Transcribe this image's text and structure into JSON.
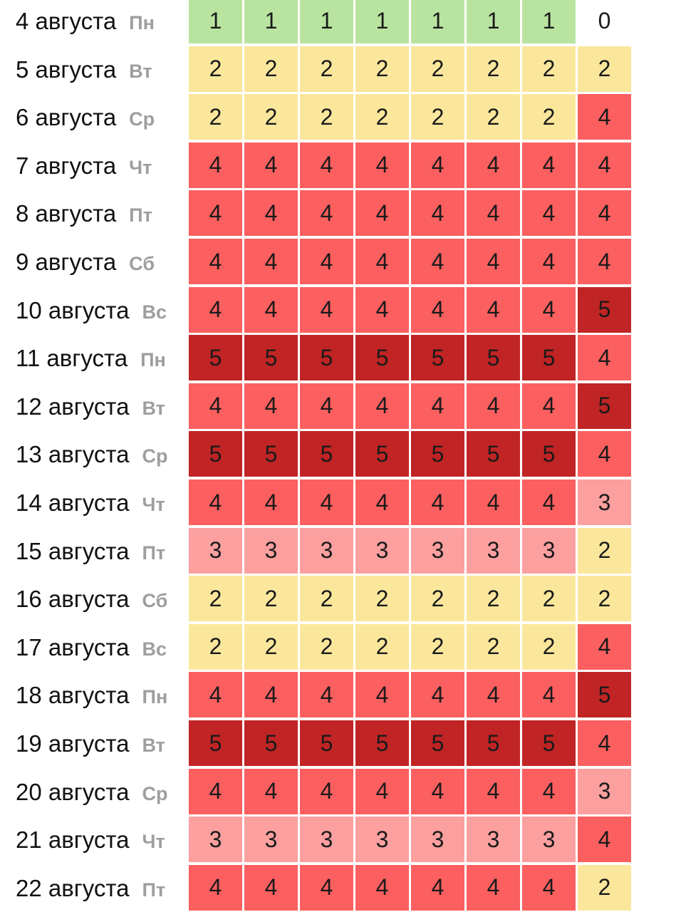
{
  "colors": {
    "0": "#ffffff",
    "1": "#b8e4a0",
    "2": "#fbe79c",
    "3": "#fb9f9f",
    "4": "#fb5f5f",
    "5": "#c02424"
  },
  "chart_data": {
    "type": "heatmap",
    "columns": 8,
    "rows": [
      {
        "date": "4 августа",
        "day": "Пн",
        "values": [
          1,
          1,
          1,
          1,
          1,
          1,
          1,
          0
        ]
      },
      {
        "date": "5 августа",
        "day": "Вт",
        "values": [
          2,
          2,
          2,
          2,
          2,
          2,
          2,
          2
        ]
      },
      {
        "date": "6 августа",
        "day": "Ср",
        "values": [
          2,
          2,
          2,
          2,
          2,
          2,
          2,
          4
        ]
      },
      {
        "date": "7 августа",
        "day": "Чт",
        "values": [
          4,
          4,
          4,
          4,
          4,
          4,
          4,
          4
        ]
      },
      {
        "date": "8 августа",
        "day": "Пт",
        "values": [
          4,
          4,
          4,
          4,
          4,
          4,
          4,
          4
        ]
      },
      {
        "date": "9 августа",
        "day": "Сб",
        "values": [
          4,
          4,
          4,
          4,
          4,
          4,
          4,
          4
        ]
      },
      {
        "date": "10 августа",
        "day": "Вс",
        "values": [
          4,
          4,
          4,
          4,
          4,
          4,
          4,
          5
        ]
      },
      {
        "date": "11 августа",
        "day": "Пн",
        "values": [
          5,
          5,
          5,
          5,
          5,
          5,
          5,
          4
        ]
      },
      {
        "date": "12 августа",
        "day": "Вт",
        "values": [
          4,
          4,
          4,
          4,
          4,
          4,
          4,
          5
        ]
      },
      {
        "date": "13 августа",
        "day": "Ср",
        "values": [
          5,
          5,
          5,
          5,
          5,
          5,
          5,
          4
        ]
      },
      {
        "date": "14 августа",
        "day": "Чт",
        "values": [
          4,
          4,
          4,
          4,
          4,
          4,
          4,
          3
        ]
      },
      {
        "date": "15 августа",
        "day": "Пт",
        "values": [
          3,
          3,
          3,
          3,
          3,
          3,
          3,
          2
        ]
      },
      {
        "date": "16 августа",
        "day": "Сб",
        "values": [
          2,
          2,
          2,
          2,
          2,
          2,
          2,
          2
        ]
      },
      {
        "date": "17 августа",
        "day": "Вс",
        "values": [
          2,
          2,
          2,
          2,
          2,
          2,
          2,
          4
        ]
      },
      {
        "date": "18 августа",
        "day": "Пн",
        "values": [
          4,
          4,
          4,
          4,
          4,
          4,
          4,
          5
        ]
      },
      {
        "date": "19 августа",
        "day": "Вт",
        "values": [
          5,
          5,
          5,
          5,
          5,
          5,
          5,
          4
        ]
      },
      {
        "date": "20 августа",
        "day": "Ср",
        "values": [
          4,
          4,
          4,
          4,
          4,
          4,
          4,
          3
        ]
      },
      {
        "date": "21 августа",
        "day": "Чт",
        "values": [
          3,
          3,
          3,
          3,
          3,
          3,
          3,
          4
        ]
      },
      {
        "date": "22 августа",
        "day": "Пт",
        "values": [
          4,
          4,
          4,
          4,
          4,
          4,
          4,
          2
        ]
      }
    ]
  }
}
